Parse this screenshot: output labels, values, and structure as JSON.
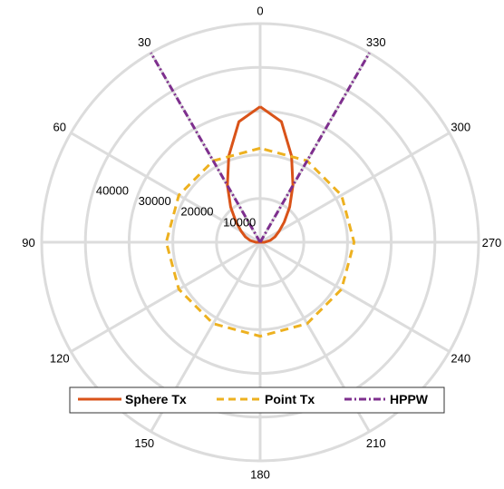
{
  "chart_data": {
    "type": "polar-line",
    "theta_direction": "counterclockwise",
    "theta_zero_location": "top",
    "angle_ticks": [
      0,
      30,
      60,
      90,
      120,
      150,
      180,
      210,
      240,
      270,
      300,
      330
    ],
    "angle_tick_labels": [
      "0",
      "30",
      "60",
      "90",
      "120",
      "150",
      "180",
      "210",
      "240",
      "270",
      "300",
      "330"
    ],
    "r_ticks": [
      10000,
      20000,
      30000,
      40000
    ],
    "r_tick_labels": [
      "10000",
      "20000",
      "30000",
      "40000"
    ],
    "rlim": [
      0,
      50000
    ],
    "grid": true,
    "legend_position": "bottom",
    "series": [
      {
        "name": "Sphere Tx",
        "color": "#d95319",
        "line_style": "solid",
        "theta": [
          0,
          10,
          20,
          30,
          40,
          50,
          60,
          70,
          80,
          90,
          100,
          110,
          120,
          130,
          140,
          150,
          160,
          170,
          180,
          190,
          200,
          210,
          220,
          230,
          240,
          250,
          260,
          270,
          280,
          290,
          300,
          310,
          320,
          330,
          340,
          350,
          360
        ],
        "r": [
          31000,
          28000,
          21000,
          15000,
          10500,
          7200,
          5000,
          3600,
          2300,
          1000,
          0,
          0,
          0,
          0,
          0,
          0,
          0,
          0,
          0,
          0,
          0,
          0,
          0,
          0,
          0,
          0,
          0,
          1000,
          2300,
          3600,
          5000,
          7200,
          10500,
          15000,
          21000,
          28000,
          31000
        ]
      },
      {
        "name": "Point Tx",
        "color": "#edb120",
        "line_style": "dashed",
        "theta": [
          0,
          30,
          60,
          90,
          120,
          150,
          180,
          210,
          240,
          270,
          300,
          330,
          360
        ],
        "r": [
          21500,
          21500,
          21500,
          21500,
          21500,
          21500,
          21500,
          21500,
          21500,
          21500,
          21500,
          21500,
          21500
        ]
      },
      {
        "name": "HPPW",
        "color": "#7e2f8e",
        "line_style": "dash-dot",
        "segments": [
          {
            "theta": [
              30,
              30
            ],
            "r": [
              0,
              50000
            ]
          },
          {
            "theta": [
              330,
              330
            ],
            "r": [
              0,
              50000
            ]
          }
        ]
      }
    ]
  }
}
